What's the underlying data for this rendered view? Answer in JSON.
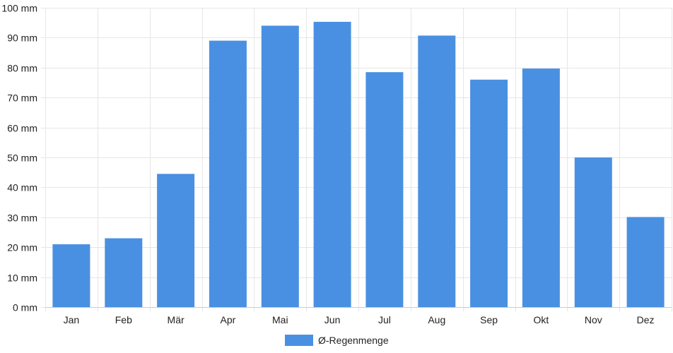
{
  "chart_data": {
    "type": "bar",
    "categories": [
      "Jan",
      "Feb",
      "Mär",
      "Apr",
      "Mai",
      "Jun",
      "Jul",
      "Aug",
      "Sep",
      "Okt",
      "Nov",
      "Dez"
    ],
    "series": [
      {
        "name": "Ø-Regenmenge",
        "values": [
          21,
          23,
          44.5,
          89,
          94,
          95.3,
          78.5,
          90.7,
          76,
          79.7,
          50,
          30.1
        ],
        "color": "#4a90e2"
      }
    ],
    "y_unit": "mm",
    "ylim": [
      0,
      100
    ],
    "y_ticks": [
      0,
      10,
      20,
      30,
      40,
      50,
      60,
      70,
      80,
      90,
      100
    ],
    "y_tick_labels": [
      "0 mm",
      "10 mm",
      "20 mm",
      "30 mm",
      "40 mm",
      "50 mm",
      "60 mm",
      "70 mm",
      "80 mm",
      "90 mm",
      "100 mm"
    ],
    "grid": true,
    "legend_position": "bottom-center"
  }
}
